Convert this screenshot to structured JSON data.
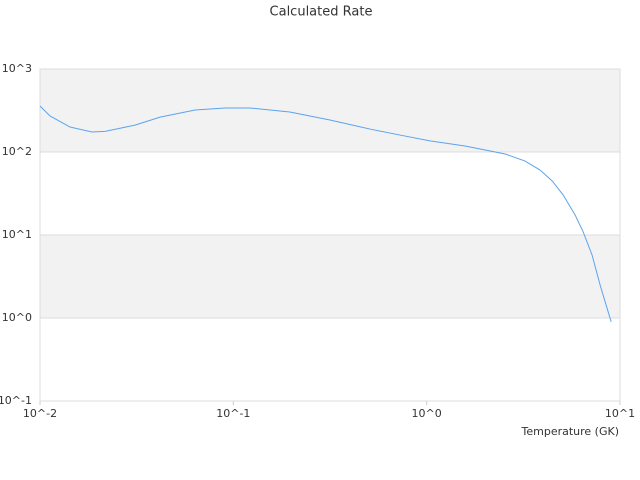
{
  "chart_data": {
    "type": "line",
    "title": "Calculated Rate",
    "x_label": "Temperature (GK)",
    "xscale": "log",
    "yscale": "log",
    "grid": true,
    "xlim": [
      0.01,
      10
    ],
    "ylim": [
      0.1,
      1000
    ],
    "xticks": [
      {
        "value": 0.01,
        "label": "10^-2"
      },
      {
        "value": 0.1,
        "label": "10^-1"
      },
      {
        "value": 1,
        "label": "10^0"
      },
      {
        "value": 10,
        "label": "10^1"
      }
    ],
    "yticks": [
      {
        "value": 0.1,
        "label": "10^-1"
      },
      {
        "value": 1,
        "label": "10^0"
      },
      {
        "value": 10,
        "label": "10^1"
      },
      {
        "value": 100,
        "label": "10^2"
      },
      {
        "value": 1000,
        "label": "10^3"
      }
    ],
    "x": [
      0.01,
      0.01127,
      0.0143,
      0.0186,
      0.0217,
      0.031,
      0.0418,
      0.0634,
      0.0906,
      0.122,
      0.196,
      0.316,
      0.509,
      0.728,
      1.04,
      1.58,
      2.55,
      3.23,
      3.86,
      4.46,
      5.08,
      5.86,
      6.45,
      7.17,
      7.89,
      9.0
    ],
    "series": [
      {
        "color": "#5ba3ef",
        "values": [
          358,
          272,
          200,
          174,
          177,
          211,
          263,
          321,
          339,
          339,
          303,
          243,
          189,
          160,
          136,
          118,
          94.6,
          77.8,
          60.6,
          44.8,
          30.4,
          17.4,
          10.9,
          5.74,
          2.5,
          0.9
        ]
      }
    ]
  }
}
